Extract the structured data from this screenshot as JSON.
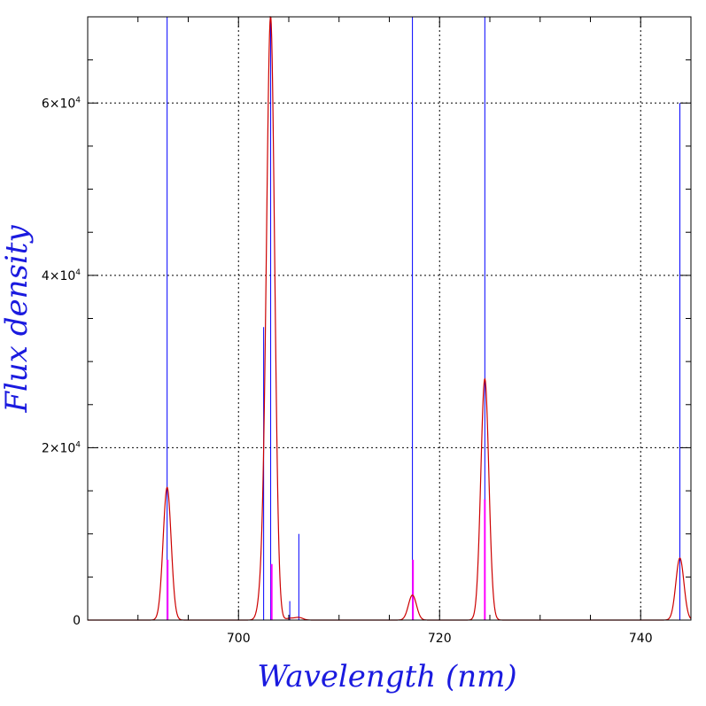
{
  "chart_data": {
    "type": "line",
    "xlabel": "Wavelength (nm)",
    "ylabel": "Flux density",
    "xlim": [
      685,
      745
    ],
    "ylim": [
      0,
      70000
    ],
    "grid": true,
    "x_ticks": [
      {
        "value": 700,
        "label": "700"
      },
      {
        "value": 720,
        "label": "720"
      },
      {
        "value": 740,
        "label": "740"
      }
    ],
    "y_ticks": [
      {
        "value": 0,
        "label": "0",
        "exp": ""
      },
      {
        "value": 20000,
        "label": "2×10",
        "exp": "4"
      },
      {
        "value": 40000,
        "label": "4×10",
        "exp": "4"
      },
      {
        "value": 60000,
        "label": "6×10",
        "exp": "4"
      }
    ],
    "series": [
      {
        "kind": "lines",
        "color": "#0000ff",
        "points": [
          {
            "x": 692.9,
            "y": 70000
          },
          {
            "x": 702.5,
            "y": 34000
          },
          {
            "x": 703.2,
            "y": 70000
          },
          {
            "x": 705.1,
            "y": 2200
          },
          {
            "x": 706.0,
            "y": 10000
          },
          {
            "x": 717.3,
            "y": 70000
          },
          {
            "x": 724.5,
            "y": 70000
          },
          {
            "x": 743.9,
            "y": 60000
          }
        ]
      },
      {
        "kind": "lines",
        "color": "#ff00ff",
        "points": [
          {
            "x": 692.95,
            "y": 7000
          },
          {
            "x": 703.3,
            "y": 6500
          },
          {
            "x": 717.35,
            "y": 7000
          },
          {
            "x": 724.5,
            "y": 14000
          }
        ]
      },
      {
        "kind": "gaussians",
        "color": "#cc0000",
        "sigma": 0.4,
        "peaks": [
          {
            "x": 692.9,
            "y": 15400
          },
          {
            "x": 702.5,
            "y": 5000
          },
          {
            "x": 703.2,
            "y": 69000
          },
          {
            "x": 705.1,
            "y": 200
          },
          {
            "x": 706.0,
            "y": 300
          },
          {
            "x": 717.3,
            "y": 2900
          },
          {
            "x": 724.5,
            "y": 28000
          },
          {
            "x": 743.9,
            "y": 7200
          }
        ]
      }
    ]
  }
}
